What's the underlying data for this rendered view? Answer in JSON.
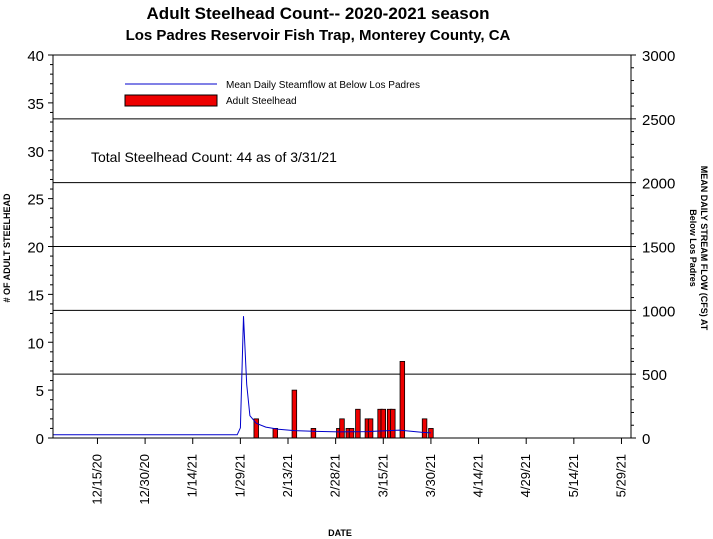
{
  "chart_data": {
    "type": "bar",
    "title": "Adult Steelhead Count-- 2020-2021 season",
    "subtitle": "Los Padres Reservoir Fish Trap, Monterey County, CA",
    "xlabel": "DATE",
    "ylabel": "# OF ADULT STEELHEAD",
    "y2label_line1": "MEAN DAILY STREAM FLOW (CFS) AT",
    "y2label_line2": "Below Los Padres",
    "annotation": "Total Steelhead Count: 44 as of 3/31/21",
    "ylim": [
      0,
      40
    ],
    "y_ticks": [
      "0",
      "5",
      "10",
      "15",
      "20",
      "25",
      "30",
      "35",
      "40"
    ],
    "y2lim": [
      0,
      3000
    ],
    "y2_ticks": [
      "0",
      "500",
      "1000",
      "1500",
      "2000",
      "2500",
      "3000"
    ],
    "x_start": "2020-12-01",
    "x_end": "2021-06-01",
    "x_ticks": [
      {
        "date": "2020-12-15",
        "label": "12/15/20"
      },
      {
        "date": "2020-12-30",
        "label": "12/30/20"
      },
      {
        "date": "2021-01-14",
        "label": "1/14/21"
      },
      {
        "date": "2021-01-29",
        "label": "1/29/21"
      },
      {
        "date": "2021-02-13",
        "label": "2/13/21"
      },
      {
        "date": "2021-02-28",
        "label": "2/28/21"
      },
      {
        "date": "2021-03-15",
        "label": "3/15/21"
      },
      {
        "date": "2021-03-30",
        "label": "3/30/21"
      },
      {
        "date": "2021-04-14",
        "label": "4/14/21"
      },
      {
        "date": "2021-04-29",
        "label": "4/29/21"
      },
      {
        "date": "2021-05-14",
        "label": "5/14/21"
      },
      {
        "date": "2021-05-29",
        "label": "5/29/21"
      }
    ],
    "grid": "horizontal, right axis",
    "legend_position": "top-left",
    "series": [
      {
        "name": "Mean Daily Steamflow at Below Los Padres",
        "kind": "line",
        "axis": "right",
        "color": "#0000cc",
        "points": [
          {
            "x": "2020-12-01",
            "y": 25
          },
          {
            "x": "2021-01-28",
            "y": 25
          },
          {
            "x": "2021-01-29",
            "y": 80
          },
          {
            "x": "2021-01-30",
            "y": 955
          },
          {
            "x": "2021-01-31",
            "y": 420
          },
          {
            "x": "2021-02-01",
            "y": 175
          },
          {
            "x": "2021-02-03",
            "y": 115
          },
          {
            "x": "2021-02-06",
            "y": 85
          },
          {
            "x": "2021-02-10",
            "y": 68
          },
          {
            "x": "2021-02-15",
            "y": 58
          },
          {
            "x": "2021-02-22",
            "y": 52
          },
          {
            "x": "2021-03-01",
            "y": 48
          },
          {
            "x": "2021-03-10",
            "y": 50
          },
          {
            "x": "2021-03-20",
            "y": 62
          },
          {
            "x": "2021-03-27",
            "y": 45
          },
          {
            "x": "2021-03-30",
            "y": 40
          }
        ]
      },
      {
        "name": "Adult Steelhead",
        "kind": "bar",
        "axis": "left",
        "color": "#ee0000",
        "points": [
          {
            "x": "2021-02-03",
            "y": 2
          },
          {
            "x": "2021-02-09",
            "y": 1
          },
          {
            "x": "2021-02-15",
            "y": 5
          },
          {
            "x": "2021-02-21",
            "y": 1
          },
          {
            "x": "2021-03-01",
            "y": 1
          },
          {
            "x": "2021-03-02",
            "y": 2
          },
          {
            "x": "2021-03-04",
            "y": 1
          },
          {
            "x": "2021-03-05",
            "y": 1
          },
          {
            "x": "2021-03-07",
            "y": 3
          },
          {
            "x": "2021-03-10",
            "y": 2
          },
          {
            "x": "2021-03-11",
            "y": 2
          },
          {
            "x": "2021-03-14",
            "y": 3
          },
          {
            "x": "2021-03-15",
            "y": 3
          },
          {
            "x": "2021-03-17",
            "y": 3
          },
          {
            "x": "2021-03-18",
            "y": 3
          },
          {
            "x": "2021-03-21",
            "y": 8
          },
          {
            "x": "2021-03-28",
            "y": 2
          },
          {
            "x": "2021-03-30",
            "y": 1
          }
        ]
      }
    ]
  }
}
